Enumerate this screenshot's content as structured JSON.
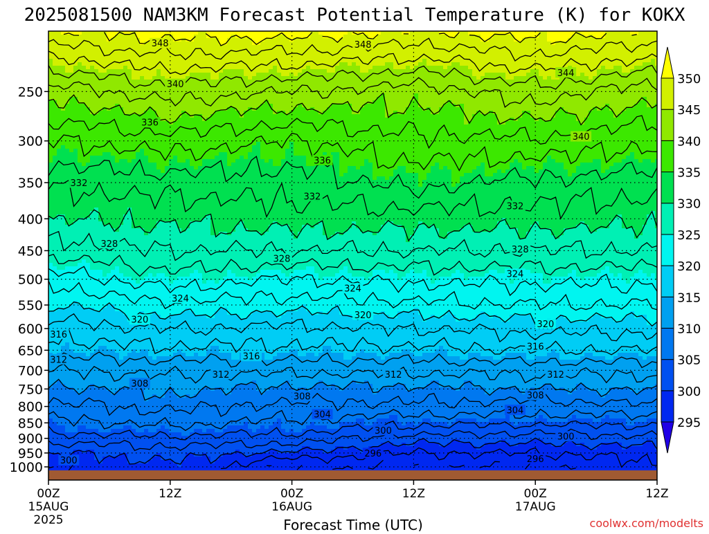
{
  "chart_data": {
    "type": "heatmap",
    "title": "2025081500 NAM3KM Forecast Potential Temperature (K) for KOKX",
    "xlabel": "Forecast Time (UTC)",
    "ylabel": "",
    "x_ticks": [
      {
        "hour": 0,
        "label": "00Z",
        "sub1": "15AUG",
        "sub2": "2025"
      },
      {
        "hour": 12,
        "label": "12Z",
        "sub1": "",
        "sub2": ""
      },
      {
        "hour": 24,
        "label": "00Z",
        "sub1": "16AUG",
        "sub2": ""
      },
      {
        "hour": 36,
        "label": "12Z",
        "sub1": "",
        "sub2": ""
      },
      {
        "hour": 48,
        "label": "00Z",
        "sub1": "17AUG",
        "sub2": ""
      },
      {
        "hour": 60,
        "label": "12Z",
        "sub1": "",
        "sub2": ""
      }
    ],
    "xlim": [
      0,
      60
    ],
    "y_ticks": [
      250,
      300,
      350,
      400,
      450,
      500,
      550,
      600,
      650,
      700,
      750,
      800,
      850,
      900,
      950,
      1000
    ],
    "ylim": [
      1013,
      200
    ],
    "y_scale": "log",
    "colorbar": {
      "levels": [
        295,
        300,
        305,
        310,
        315,
        320,
        325,
        330,
        335,
        340,
        345,
        350
      ],
      "colors": [
        "#2000e6",
        "#0028f0",
        "#0050f0",
        "#0078f0",
        "#00a0f0",
        "#00cdf5",
        "#00f5f0",
        "#00f0b4",
        "#00e050",
        "#3ce800",
        "#90e800",
        "#d2f000",
        "#ffff00"
      ],
      "extend": "both"
    },
    "contour_levels": [
      296,
      298,
      300,
      302,
      304,
      306,
      308,
      310,
      312,
      314,
      316,
      318,
      320,
      322,
      324,
      326,
      328,
      330,
      332,
      334,
      336,
      338,
      340,
      342,
      344,
      346,
      348,
      350
    ],
    "profile_pressures": [
      1013,
      975,
      950,
      925,
      900,
      875,
      850,
      825,
      800,
      775,
      750,
      725,
      700,
      650,
      600,
      550,
      500,
      450,
      400,
      350,
      300,
      250,
      200
    ],
    "profiles": [
      {
        "hour": 0,
        "theta": [
          298,
          299,
          300,
          301.5,
          303,
          304.5,
          305.5,
          306.5,
          307.5,
          308.5,
          309.5,
          311,
          312,
          315,
          317,
          320,
          323,
          327,
          330,
          332.5,
          336,
          341,
          350
        ]
      },
      {
        "hour": 12,
        "theta": [
          299,
          300,
          301,
          302,
          303.5,
          305,
          306.5,
          307.5,
          308.5,
          309.5,
          310.5,
          311.5,
          312.5,
          315.5,
          318,
          321.5,
          325,
          328,
          330.5,
          333,
          337,
          343,
          351
        ]
      },
      {
        "hour": 24,
        "theta": [
          296,
          297.5,
          299.5,
          301.5,
          303,
          304.5,
          305.5,
          306.5,
          307.5,
          308.5,
          309.5,
          311,
          312.5,
          315.5,
          317.5,
          321,
          324,
          328,
          331,
          333,
          336,
          342,
          351
        ]
      },
      {
        "hour": 36,
        "theta": [
          296,
          297,
          298,
          299.5,
          301,
          303,
          304.5,
          306,
          307.5,
          308.5,
          309.5,
          311,
          312.5,
          315.5,
          318,
          321.5,
          324.5,
          328,
          331,
          334.5,
          337.5,
          341,
          350
        ]
      },
      {
        "hour": 48,
        "theta": [
          296,
          297,
          298,
          299.5,
          301,
          302.5,
          304.5,
          306,
          307,
          308.5,
          310,
          311.5,
          312.5,
          316,
          318.5,
          322,
          324.5,
          328,
          331,
          333.5,
          337.5,
          343,
          351
        ]
      },
      {
        "hour": 60,
        "theta": [
          297,
          298,
          299,
          300,
          301.5,
          303,
          304.5,
          306,
          307.5,
          309,
          310,
          311.5,
          312.5,
          316,
          318.5,
          322,
          324.5,
          328,
          330.5,
          333,
          336.5,
          341,
          350
        ]
      }
    ],
    "contour_labels": [
      {
        "value": 348,
        "hour": 11,
        "p": 209
      },
      {
        "value": 348,
        "hour": 31,
        "p": 210
      },
      {
        "value": 344,
        "hour": 51,
        "p": 233
      },
      {
        "value": 340,
        "hour": 12.5,
        "p": 243
      },
      {
        "value": 340,
        "hour": 52.5,
        "p": 295
      },
      {
        "value": 336,
        "hour": 10,
        "p": 280
      },
      {
        "value": 336,
        "hour": 27,
        "p": 322
      },
      {
        "value": 332,
        "hour": 3,
        "p": 350
      },
      {
        "value": 332,
        "hour": 26,
        "p": 368
      },
      {
        "value": 332,
        "hour": 46,
        "p": 381
      },
      {
        "value": 328,
        "hour": 6,
        "p": 438
      },
      {
        "value": 328,
        "hour": 23,
        "p": 463
      },
      {
        "value": 328,
        "hour": 46.5,
        "p": 447
      },
      {
        "value": 324,
        "hour": 13,
        "p": 536
      },
      {
        "value": 324,
        "hour": 30,
        "p": 517
      },
      {
        "value": 324,
        "hour": 46,
        "p": 490
      },
      {
        "value": 320,
        "hour": 9,
        "p": 580
      },
      {
        "value": 320,
        "hour": 31,
        "p": 570
      },
      {
        "value": 320,
        "hour": 49,
        "p": 589
      },
      {
        "value": 316,
        "hour": 1,
        "p": 612
      },
      {
        "value": 316,
        "hour": 20,
        "p": 664
      },
      {
        "value": 316,
        "hour": 48,
        "p": 640
      },
      {
        "value": 312,
        "hour": 1,
        "p": 672
      },
      {
        "value": 312,
        "hour": 17,
        "p": 710
      },
      {
        "value": 312,
        "hour": 34,
        "p": 710
      },
      {
        "value": 312,
        "hour": 50,
        "p": 710
      },
      {
        "value": 308,
        "hour": 9,
        "p": 734
      },
      {
        "value": 308,
        "hour": 25,
        "p": 770
      },
      {
        "value": 308,
        "hour": 48,
        "p": 767
      },
      {
        "value": 304,
        "hour": 27,
        "p": 823
      },
      {
        "value": 304,
        "hour": 46,
        "p": 810
      },
      {
        "value": 300,
        "hour": 33,
        "p": 873
      },
      {
        "value": 300,
        "hour": 51,
        "p": 893
      },
      {
        "value": 300,
        "hour": 2,
        "p": 975
      },
      {
        "value": 296,
        "hour": 32,
        "p": 950
      },
      {
        "value": 296,
        "hour": 48,
        "p": 970
      }
    ]
  },
  "footer": {
    "xaxis_title": "Forecast Time (UTC)",
    "watermark": "coolwx.com/modelts"
  }
}
